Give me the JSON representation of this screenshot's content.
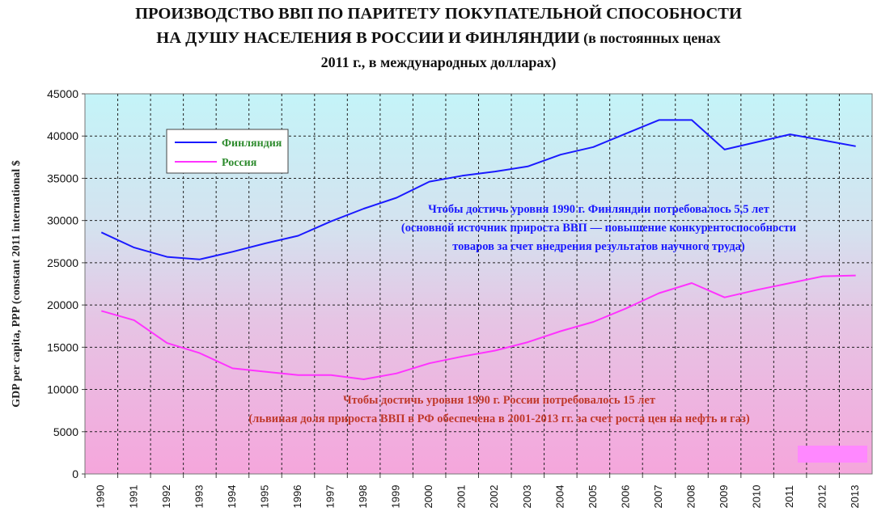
{
  "title_line1": "ПРОИЗВОДСТВО ВВП ПО ПАРИТЕТУ ПОКУПАТЕЛЬНОЙ СПОСОБНОСТИ",
  "title_line2": "НА ДУШУ НАСЕЛЕНИЯ В РОССИИ И ФИНЛЯНДИИ",
  "title_line2_suffix": " (в постоянных ценах",
  "title_line3": "2011 г., в международных долларах)",
  "chart_data": {
    "type": "line",
    "ylabel": "GDP per capita, PPP (constant 2011 international $",
    "ylim": [
      0,
      45000
    ],
    "yticks": [
      0,
      5000,
      10000,
      15000,
      20000,
      25000,
      30000,
      35000,
      40000,
      45000
    ],
    "x": [
      1990,
      1991,
      1992,
      1993,
      1994,
      1995,
      1996,
      1997,
      1998,
      1999,
      2000,
      2001,
      2002,
      2003,
      2004,
      2005,
      2006,
      2007,
      2008,
      2009,
      2010,
      2011,
      2012,
      2013
    ],
    "grid": true,
    "legend_position": "top-left",
    "series": [
      {
        "name": "Финляндия",
        "color": "#1a1aff",
        "legend_text_color": "#2e8b2e",
        "values": [
          28600,
          26800,
          25700,
          25400,
          26300,
          27300,
          28200,
          29900,
          31400,
          32700,
          34600,
          35300,
          35800,
          36400,
          37800,
          38700,
          40300,
          41900,
          41900,
          38400,
          39300,
          40200,
          39500,
          38800
        ]
      },
      {
        "name": "Россия",
        "color": "#ff33ff",
        "legend_text_color": "#2e8b2e",
        "values": [
          19300,
          18200,
          15500,
          14300,
          12500,
          12100,
          11700,
          11700,
          11200,
          11900,
          13100,
          13900,
          14600,
          15600,
          16900,
          18000,
          19600,
          21400,
          22600,
          20900,
          21800,
          22600,
          23400,
          23500
        ]
      }
    ],
    "annotations": [
      {
        "color": "#1a1aff",
        "lines": [
          "Чтобы достичь уровня 1990 г. Финляндии потребовалось 5,5 лет",
          "(основной источник прироста ВВП — повышение конкурентоспособности",
          "товаров за счет внедрения результатов научного труда)"
        ]
      },
      {
        "color": "#c0392b",
        "lines": [
          "Чтобы достичь уровня 1990 г. России потребовалось 15 лет",
          "(львиная доля прироста ВВП  в РФ обеспечена в 2001-2013 гг. за счет роста цен на нефть и газ)"
        ]
      }
    ]
  }
}
